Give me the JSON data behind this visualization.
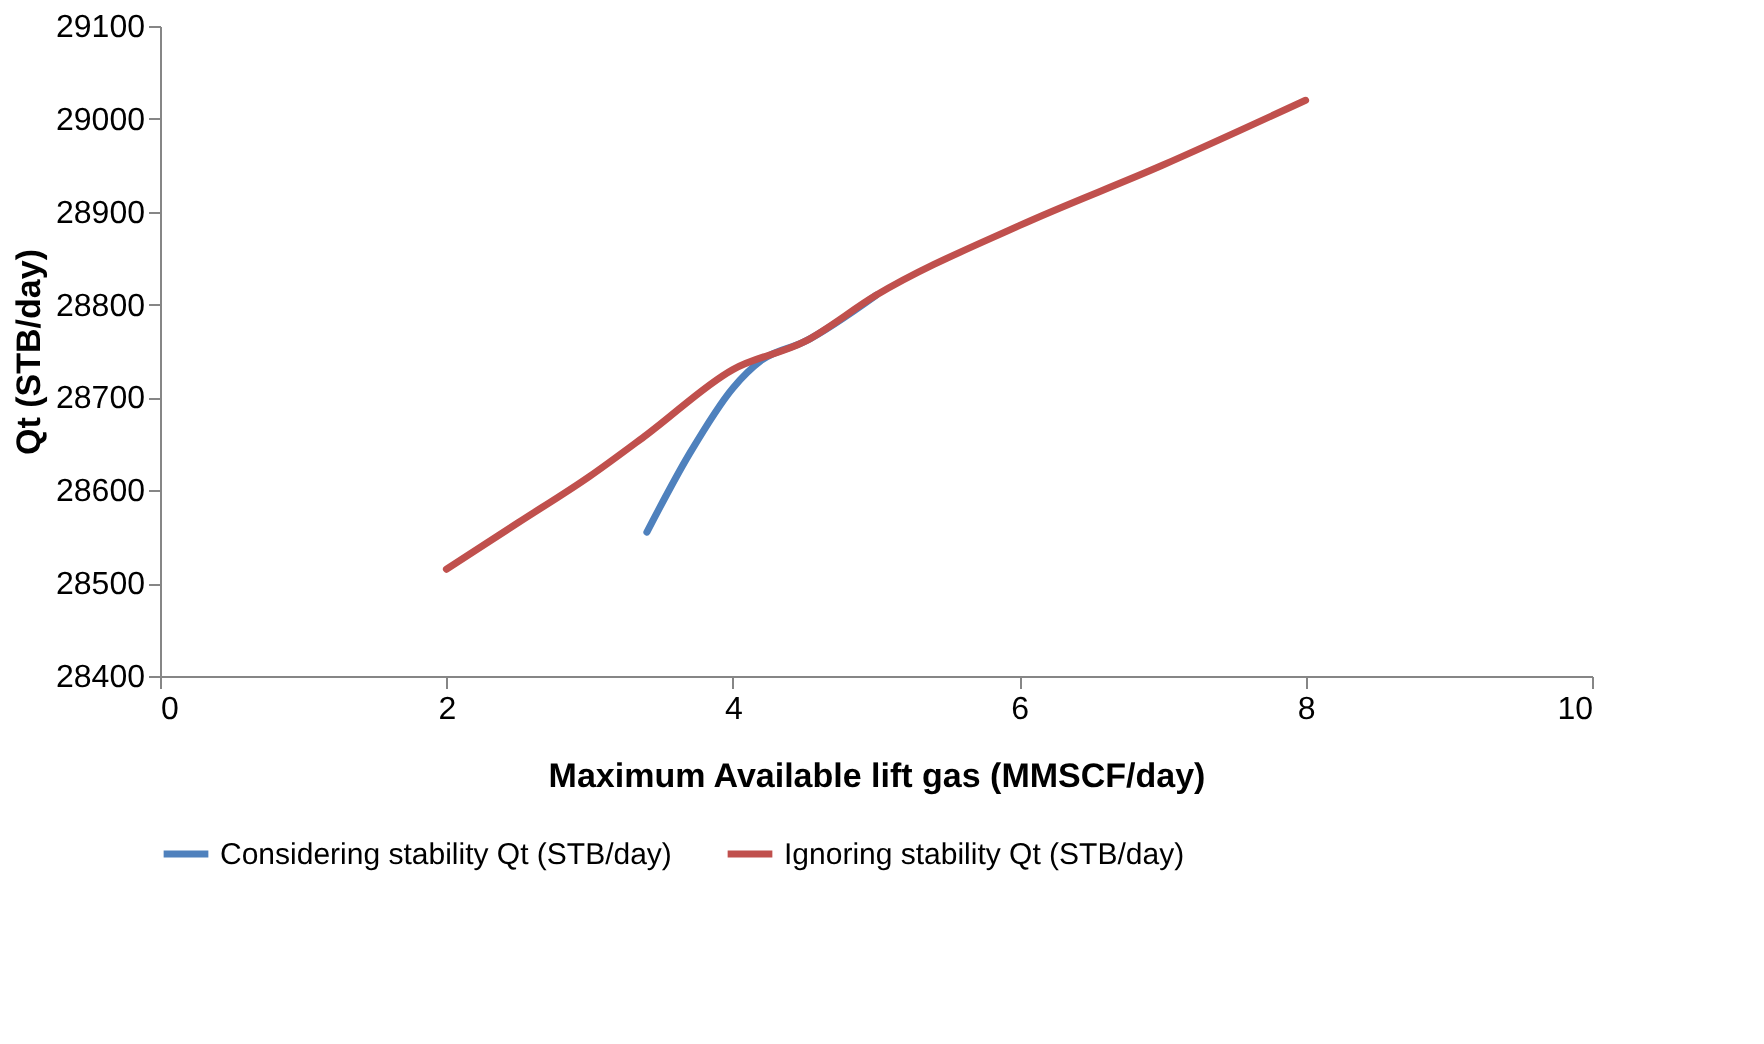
{
  "chart_data": {
    "type": "line",
    "xlabel": "Maximum Available lift gas (MMSCF/day)",
    "ylabel": "Qt (STB/day)",
    "xlim": [
      0,
      10
    ],
    "xticks": [
      0,
      2,
      4,
      6,
      8,
      10
    ],
    "ylim": [
      28400,
      29100
    ],
    "yticks": [
      28400,
      28500,
      28600,
      28700,
      28800,
      28900,
      29000,
      29100
    ],
    "grid": false,
    "legend": "bottom",
    "line_style": "solid",
    "marker": "none",
    "series": [
      {
        "name": "Considering stability Qt (STB/day)",
        "color": "#4f81bd",
        "x": [
          3.4,
          3.7,
          4,
          4.2,
          4.5,
          5
        ],
        "values": [
          28555,
          28640,
          28710,
          28740,
          28760,
          28810
        ]
      },
      {
        "name": "Ignoring stability Qt (STB/day)",
        "color": "#c0504d",
        "x": [
          2,
          2.5,
          3,
          3.4,
          4,
          4.5,
          5,
          6,
          7,
          8
        ],
        "values": [
          28515,
          28565,
          28615,
          28660,
          28730,
          28760,
          28810,
          28885,
          28950,
          29020
        ]
      }
    ]
  }
}
